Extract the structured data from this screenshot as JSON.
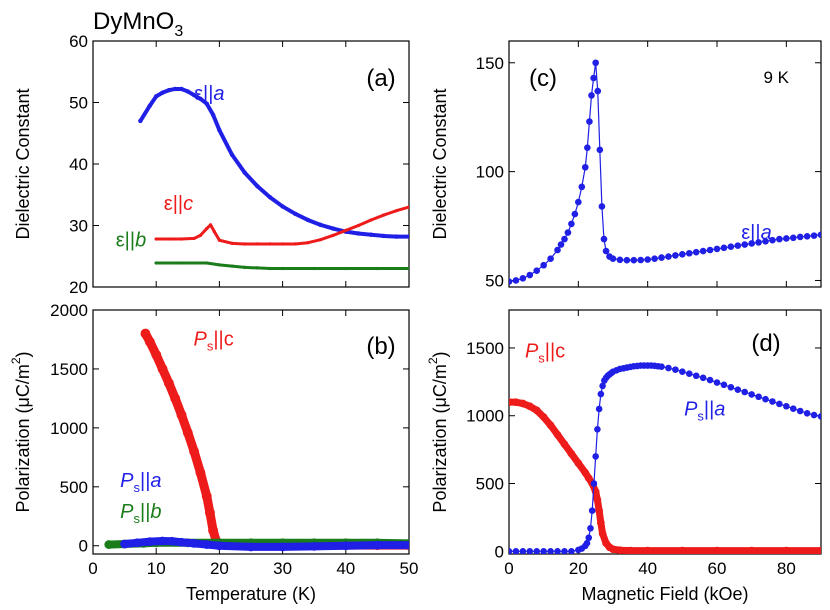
{
  "figure_title": "DyMnO",
  "figure_title_subscript": "3",
  "colors": {
    "a": "#1f1fe6",
    "b": "#1a7d1a",
    "c": "#ee1b1b",
    "axis": "#000000"
  },
  "chart_data": [
    {
      "id": "a",
      "type": "line",
      "panel_label": "(a)",
      "ylabel": "Dielectric Constant",
      "xlabel": "",
      "xlim": [
        0,
        50
      ],
      "ylim": [
        20,
        60
      ],
      "xticks": [
        0,
        10,
        20,
        30,
        40,
        50
      ],
      "yticks": [
        20,
        30,
        40,
        50,
        60
      ],
      "yticklabels": [
        "20",
        "30",
        "40",
        "50",
        "60"
      ],
      "show_x_ticklabels": false,
      "series": [
        {
          "name": "ε||a",
          "color_key": "a",
          "style": "band",
          "width": 4,
          "label_parts": [
            [
              "ε||",
              "n"
            ],
            [
              "a",
              "i"
            ]
          ],
          "label_at": [
            16,
            50.4
          ],
          "x": [
            7.5,
            9,
            10,
            11,
            12,
            13,
            14,
            15,
            16,
            17,
            18,
            19,
            20,
            22,
            24,
            26,
            28,
            30,
            32,
            34,
            36,
            38,
            40,
            42,
            44,
            46,
            48,
            50
          ],
          "y": [
            47,
            49.5,
            51,
            51.6,
            52,
            52.2,
            52.2,
            51.8,
            51.2,
            50.6,
            49.8,
            48,
            45.5,
            41.5,
            38.6,
            36.4,
            34.6,
            33.1,
            31.9,
            30.9,
            30.1,
            29.5,
            29.0,
            28.7,
            28.5,
            28.3,
            28.2,
            28.2
          ]
        },
        {
          "name": "ε||c",
          "color_key": "c",
          "style": "band",
          "width": 3,
          "label_parts": [
            [
              "ε||",
              "n"
            ],
            [
              "c",
              "i"
            ]
          ],
          "label_at": [
            11.2,
            32.5
          ],
          "x": [
            10,
            12,
            14,
            16,
            17,
            18,
            18.6,
            19.2,
            20,
            22,
            24,
            26,
            28,
            30,
            32,
            34,
            36,
            38,
            40,
            42,
            44,
            46,
            48,
            50
          ],
          "y": [
            27.8,
            27.8,
            27.8,
            27.9,
            28.4,
            29.5,
            30.1,
            29.0,
            27.6,
            27.1,
            27.0,
            27.0,
            27.0,
            27.0,
            27.0,
            27.2,
            27.7,
            28.4,
            29.2,
            30.0,
            30.9,
            31.7,
            32.4,
            33.0
          ]
        },
        {
          "name": "ε||b",
          "color_key": "b",
          "style": "band",
          "width": 3,
          "label_parts": [
            [
              "ε||",
              "n"
            ],
            [
              "b",
              "i"
            ]
          ],
          "label_at": [
            3.6,
            26.6
          ],
          "x": [
            10,
            14,
            18,
            20,
            22,
            24,
            26,
            28,
            30,
            35,
            40,
            45,
            50
          ],
          "y": [
            23.9,
            23.9,
            23.9,
            23.6,
            23.4,
            23.2,
            23.1,
            23.0,
            23.0,
            23.0,
            23.0,
            23.0,
            23.0
          ]
        }
      ]
    },
    {
      "id": "b",
      "type": "scatter",
      "panel_label": "(b)",
      "ylabel": "Polarization (μC/m",
      "ylabel_sup": "2",
      "ylabel_end": ")",
      "xlabel": "Temperature (K)",
      "xlim": [
        0,
        50
      ],
      "ylim": [
        -70,
        2000
      ],
      "xticks": [
        0,
        10,
        20,
        30,
        40,
        50
      ],
      "xticklabels": [
        "0",
        "10",
        "20",
        "30",
        "40",
        "50"
      ],
      "yticks": [
        0,
        500,
        1000,
        1500,
        2000
      ],
      "yticklabels": [
        "0",
        "500",
        "1000",
        "1500",
        "2000"
      ],
      "show_x_ticklabels": true,
      "series": [
        {
          "name": "Ps||c",
          "color_key": "c",
          "style": "band",
          "width": 9,
          "label_parts": [
            [
              "P",
              "i"
            ],
            [
              "s",
              "sub"
            ],
            [
              "||c",
              "n"
            ]
          ],
          "label_at": [
            15.9,
            1700
          ],
          "x": [
            8.3,
            9,
            10,
            11,
            12,
            13,
            14,
            15,
            16,
            17,
            18,
            18.5,
            19,
            19.5,
            20,
            21,
            22,
            25,
            30,
            35,
            40,
            45,
            50
          ],
          "y": [
            1800,
            1730,
            1620,
            1500,
            1380,
            1250,
            1110,
            960,
            800,
            620,
            420,
            280,
            130,
            40,
            10,
            5,
            5,
            5,
            5,
            5,
            5,
            5,
            5
          ]
        },
        {
          "name": "Ps||b",
          "color_key": "b",
          "style": "band",
          "width": 8,
          "label_parts": [
            [
              "P",
              "i"
            ],
            [
              "s",
              "sub"
            ],
            [
              "||",
              "n"
            ],
            [
              "b",
              "i"
            ]
          ],
          "label_at": [
            4.3,
            235
          ],
          "x": [
            2.5,
            5,
            8,
            10,
            15,
            20,
            25,
            30,
            35,
            40,
            45,
            50
          ],
          "y": [
            10,
            15,
            20,
            25,
            25,
            25,
            25,
            25,
            25,
            25,
            25,
            20
          ]
        },
        {
          "name": "Ps||a",
          "color_key": "a",
          "style": "band",
          "width": 8,
          "label_parts": [
            [
              "P",
              "i"
            ],
            [
              "s",
              "sub"
            ],
            [
              "||",
              "n"
            ],
            [
              "a",
              "i"
            ]
          ],
          "label_at": [
            4.3,
            500
          ],
          "x": [
            5,
            7,
            9,
            11,
            12.5,
            14,
            16,
            18,
            20,
            25,
            30,
            35,
            40,
            45,
            50
          ],
          "y": [
            15,
            25,
            35,
            40,
            38,
            30,
            20,
            10,
            0,
            -10,
            -10,
            -5,
            0,
            5,
            5
          ]
        }
      ]
    },
    {
      "id": "c",
      "type": "line",
      "panel_label": "(c)",
      "annotation": "9 K",
      "ylabel": "Dielectric Constant",
      "xlabel": "",
      "xlim": [
        0,
        90
      ],
      "ylim": [
        47,
        160
      ],
      "xticks": [
        0,
        20,
        40,
        60,
        80
      ],
      "yticks": [
        50,
        100,
        150
      ],
      "yticklabels": [
        "50",
        "100",
        "150"
      ],
      "show_x_ticklabels": false,
      "series": [
        {
          "name": "ε||a",
          "color_key": "a",
          "style": "markers",
          "marker_r": 3.3,
          "label_parts": [
            [
              "ε||",
              "n"
            ],
            [
              "a",
              "i"
            ]
          ],
          "label_at": [
            67,
            69
          ],
          "x": [
            0,
            2,
            4,
            6,
            8,
            10,
            12,
            14,
            15,
            16,
            17,
            18,
            19,
            20,
            21,
            22,
            22.6,
            23.2,
            23.8,
            24.4,
            25,
            25.6,
            26.2,
            26.8,
            27.4,
            28,
            29,
            30,
            32,
            34,
            36,
            38,
            40,
            42,
            44,
            46,
            48,
            50,
            52,
            54,
            56,
            58,
            60,
            62,
            64,
            66,
            68,
            70,
            72,
            74,
            76,
            78,
            80,
            82,
            84,
            86,
            88,
            90
          ],
          "y": [
            49.5,
            50,
            51,
            52.5,
            54.5,
            57,
            60,
            64,
            66.5,
            69,
            72,
            76,
            80.5,
            86,
            93,
            102,
            111,
            123,
            135,
            143,
            150,
            137,
            110,
            84,
            69,
            63.5,
            61,
            60,
            59.5,
            59.3,
            59.3,
            59.4,
            59.6,
            60,
            60.5,
            61,
            61.5,
            62,
            62.5,
            63,
            63.5,
            64,
            64.5,
            65,
            65.5,
            66,
            66.5,
            67,
            67.5,
            68,
            68.5,
            69,
            69.3,
            69.6,
            70,
            70.3,
            70.6,
            71
          ]
        }
      ]
    },
    {
      "id": "d",
      "type": "scatter",
      "panel_label": "(d)",
      "ylabel": "Polarization (μC/m",
      "ylabel_sup": "2",
      "ylabel_end": ")",
      "xlabel": "Magnetic Field (kOe)",
      "xlim": [
        0,
        90
      ],
      "ylim": [
        -20,
        1780
      ],
      "xticks": [
        0,
        20,
        40,
        60,
        80
      ],
      "xticklabels": [
        "0",
        "20",
        "40",
        "60",
        "80"
      ],
      "yticks": [
        0,
        500,
        1000,
        1500
      ],
      "yticklabels": [
        "0",
        "500",
        "1000",
        "1500"
      ],
      "show_x_ticklabels": true,
      "series": [
        {
          "name": "Ps||c",
          "color_key": "c",
          "style": "band",
          "width": 7,
          "label_parts": [
            [
              "P",
              "i"
            ],
            [
              "s",
              "sub"
            ],
            [
              "||c",
              "n"
            ]
          ],
          "label_at": [
            4.6,
            1430
          ],
          "x": [
            0,
            2,
            4,
            6,
            8,
            10,
            12,
            14,
            16,
            18,
            20,
            22,
            23,
            24,
            25,
            25.5,
            26,
            26.5,
            27,
            28,
            29,
            30,
            32,
            35,
            40,
            50,
            60,
            70,
            80,
            90
          ],
          "y": [
            1100,
            1100,
            1090,
            1070,
            1040,
            990,
            930,
            860,
            790,
            720,
            650,
            580,
            540,
            500,
            440,
            380,
            300,
            210,
            130,
            60,
            30,
            15,
            8,
            5,
            5,
            5,
            5,
            5,
            5,
            5
          ]
        },
        {
          "name": "Ps||a",
          "color_key": "a",
          "style": "markers",
          "marker_r": 3.3,
          "label_parts": [
            [
              "P",
              "i"
            ],
            [
              "s",
              "sub"
            ],
            [
              "||",
              "n"
            ],
            [
              "a",
              "i"
            ]
          ],
          "label_at": [
            50.5,
            1000
          ],
          "x": [
            0,
            2,
            4,
            6,
            8,
            10,
            12,
            14,
            16,
            18,
            20,
            21,
            22,
            22.5,
            23,
            23.5,
            24,
            24.5,
            25,
            25.5,
            26,
            26.5,
            27,
            27.5,
            28,
            28.5,
            29,
            29.5,
            30,
            31,
            32,
            33,
            34,
            35,
            36,
            37,
            38,
            39,
            40,
            41,
            42,
            43,
            44,
            46,
            48,
            50,
            52,
            54,
            56,
            58,
            60,
            62,
            64,
            66,
            68,
            70,
            72,
            74,
            76,
            78,
            80,
            82,
            84,
            86,
            88,
            90
          ],
          "y": [
            0,
            0,
            0,
            0,
            0,
            0,
            0,
            0,
            0,
            0,
            10,
            20,
            40,
            60,
            100,
            170,
            300,
            500,
            700,
            900,
            1050,
            1160,
            1220,
            1260,
            1280,
            1295,
            1305,
            1315,
            1325,
            1335,
            1345,
            1350,
            1355,
            1360,
            1365,
            1367,
            1370,
            1370,
            1370,
            1370,
            1368,
            1365,
            1362,
            1352,
            1340,
            1325,
            1310,
            1295,
            1280,
            1263,
            1245,
            1228,
            1210,
            1192,
            1175,
            1157,
            1140,
            1122,
            1105,
            1087,
            1070,
            1052,
            1035,
            1018,
            1005,
            995
          ]
        }
      ]
    }
  ]
}
